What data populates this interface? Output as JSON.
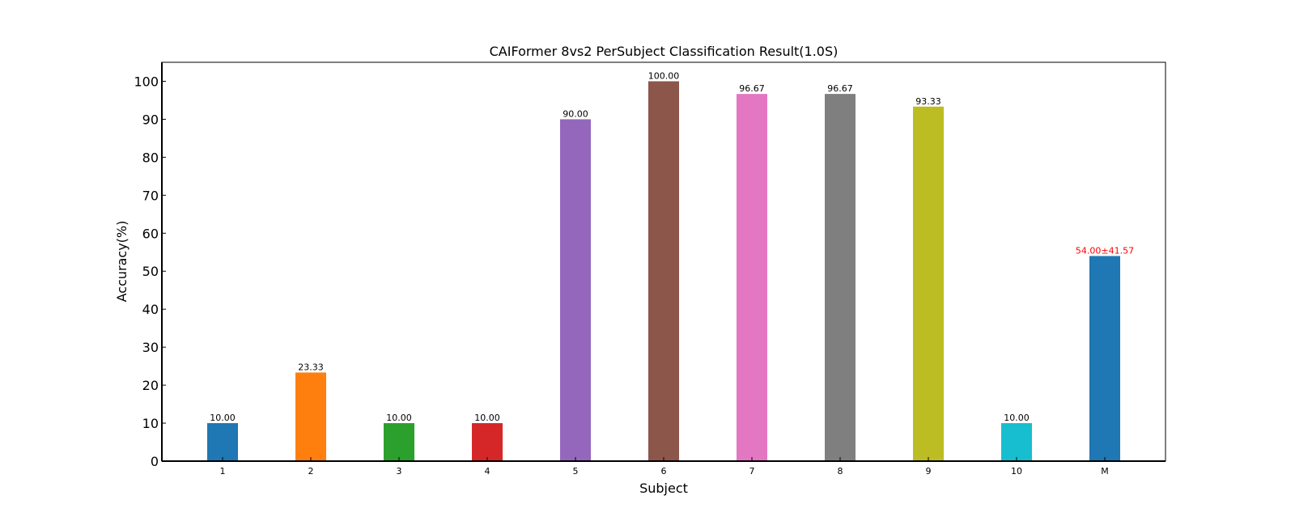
{
  "chart_data": {
    "type": "bar",
    "title": "CAIFormer 8vs2 PerSubject Classification Result(1.0S)",
    "xlabel": "Subject",
    "ylabel": "Accuracy(%)",
    "ylim": [
      0,
      105
    ],
    "yticks": [
      0,
      10,
      20,
      30,
      40,
      50,
      60,
      70,
      80,
      90,
      100
    ],
    "categories": [
      "1",
      "2",
      "3",
      "4",
      "5",
      "6",
      "7",
      "8",
      "9",
      "10",
      "M"
    ],
    "values": [
      10.0,
      23.33,
      10.0,
      10.0,
      90.0,
      100.0,
      96.67,
      96.67,
      93.33,
      10.0,
      54.0
    ],
    "value_labels": [
      "10.00",
      "23.33",
      "10.00",
      "10.00",
      "90.00",
      "100.00",
      "96.67",
      "96.67",
      "93.33",
      "10.00",
      "54.00±41.57"
    ],
    "colors": [
      "#1f77b4",
      "#ff7f0e",
      "#2ca02c",
      "#d62728",
      "#9467bd",
      "#8c564b",
      "#e377c2",
      "#7f7f7f",
      "#bcbd22",
      "#17becf",
      "#1f77b4"
    ],
    "label_colors": [
      "#000000",
      "#000000",
      "#000000",
      "#000000",
      "#000000",
      "#000000",
      "#000000",
      "#000000",
      "#000000",
      "#000000",
      "#ff0000"
    ],
    "grid": false,
    "legend": "none"
  }
}
